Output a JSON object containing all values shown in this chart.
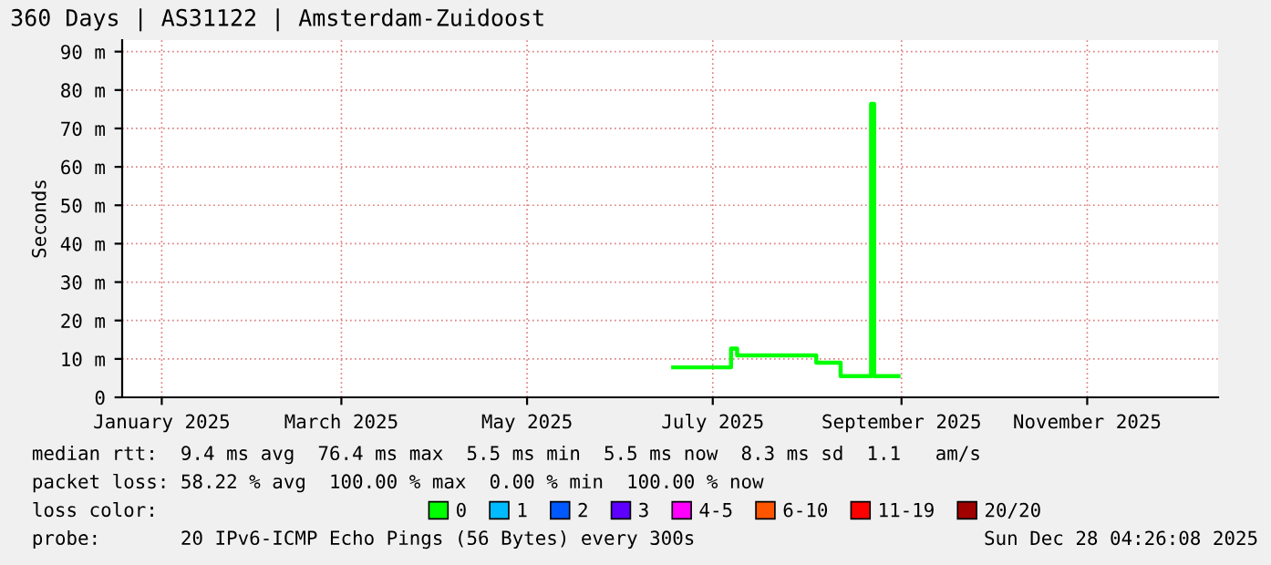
{
  "chart_data": {
    "type": "step",
    "title": "360 Days | AS31122 | Amsterdam-Zuidoost",
    "ylabel": "Seconds",
    "xlim": [
      "2025-01-02",
      "2025-12-28"
    ],
    "xticks": [
      {
        "value": "2025-01-15",
        "label": "January 2025"
      },
      {
        "value": "2025-03-15",
        "label": "March 2025"
      },
      {
        "value": "2025-05-15",
        "label": "May 2025"
      },
      {
        "value": "2025-07-15",
        "label": "July 2025"
      },
      {
        "value": "2025-09-15",
        "label": "September 2025"
      },
      {
        "value": "2025-11-15",
        "label": "November 2025"
      }
    ],
    "ylim": [
      0,
      93
    ],
    "yticks": [
      0,
      {
        "value": 10,
        "label": "10 m"
      },
      {
        "value": 20,
        "label": "20 m"
      },
      {
        "value": 30,
        "label": "30 m"
      },
      {
        "value": 40,
        "label": "40 m"
      },
      {
        "value": 50,
        "label": "50 m"
      },
      {
        "value": 60,
        "label": "60 m"
      },
      {
        "value": 70,
        "label": "70 m"
      },
      {
        "value": 80,
        "label": "80 m"
      },
      {
        "value": 90,
        "label": "90 m"
      }
    ],
    "grid": true,
    "legend": "bottom",
    "legend_title": "loss color:",
    "x": [
      "2025-07-02",
      "2025-07-21",
      "2025-07-23",
      "2025-08-18",
      "2025-08-26",
      "2025-09-05",
      "2025-09-06",
      "2025-09-14"
    ],
    "series": [
      {
        "name": "0",
        "color": "#00ff00",
        "values": [
          7.8,
          12.7,
          10.9,
          9.0,
          5.5,
          76.4,
          5.5,
          5.5
        ]
      },
      {
        "name": "1",
        "color": "#00bbff",
        "values": [
          null,
          null,
          null,
          null,
          null,
          null,
          null,
          null
        ]
      },
      {
        "name": "2",
        "color": "#0059ff",
        "values": [
          null,
          null,
          null,
          null,
          null,
          null,
          null,
          null
        ]
      },
      {
        "name": "3",
        "color": "#5e00ff",
        "values": [
          null,
          null,
          null,
          null,
          null,
          null,
          null,
          null
        ]
      },
      {
        "name": "4-5",
        "color": "#ff00ff",
        "values": [
          null,
          null,
          null,
          null,
          null,
          null,
          null,
          null
        ]
      },
      {
        "name": "6-10",
        "color": "#ff5500",
        "values": [
          null,
          null,
          null,
          null,
          null,
          null,
          null,
          null
        ]
      },
      {
        "name": "11-19",
        "color": "#ff0000",
        "values": [
          null,
          null,
          null,
          null,
          null,
          null,
          null,
          null
        ]
      },
      {
        "name": "20/20",
        "color": "#a10000",
        "values": [
          null,
          null,
          null,
          null,
          null,
          null,
          null,
          null
        ]
      }
    ],
    "annotations": [
      "median rtt:  9.4 ms avg  76.4 ms max  5.5 ms min  5.5 ms now  8.3 ms sd  1.1   am/s",
      "packet loss: 58.22 % avg  100.00 % max  0.00 % min  100.00 % now",
      "probe:       20 IPv6-ICMP Echo Pings (56 Bytes) every 300s",
      "Sun Dec 28 04:26:08 2025"
    ]
  }
}
